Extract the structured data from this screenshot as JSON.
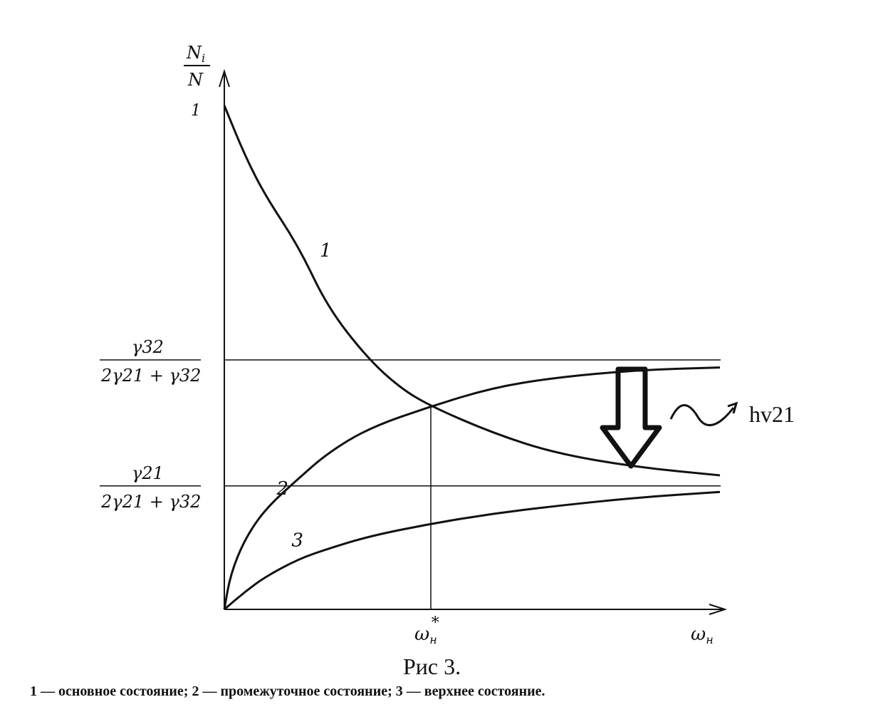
{
  "chart_data": {
    "type": "line",
    "title": "Рис 3.",
    "caption": "1 — основное состояние; 2 — промежуточное состояние; 3 — верхнее состояние.",
    "ylabel_num": "N",
    "ylabel_num_sub": "i",
    "ylabel_den": "N",
    "xlabel": "ω",
    "xlabel_sub": "н",
    "xmark_label": "ω",
    "xmark_sub": "н",
    "xmark_sup": "*",
    "y_tick_top": "1",
    "xlim": [
      0,
      2.45
    ],
    "ylim": [
      0,
      1
    ],
    "xmark": 1,
    "levels": [
      {
        "num": "γ32",
        "den": "2γ21 + γ32",
        "value": 0.495
      },
      {
        "num": "γ21",
        "den": "2γ21 + γ32",
        "value": 0.245
      }
    ],
    "series": [
      {
        "name": "1",
        "color": "#111111",
        "x": [
          0,
          0.1,
          0.2,
          0.36,
          0.5,
          0.69,
          0.85,
          1.0,
          1.3,
          1.6,
          2.0,
          2.4
        ],
        "y": [
          1,
          0.9,
          0.82,
          0.72,
          0.6,
          0.5,
          0.44,
          0.403,
          0.35,
          0.31,
          0.282,
          0.266
        ]
      },
      {
        "name": "2",
        "color": "#111111",
        "x": [
          0,
          0.03,
          0.1,
          0.2,
          0.36,
          0.5,
          0.7,
          1.0,
          1.3,
          1.6,
          2.0,
          2.4
        ],
        "y": [
          0,
          0.07,
          0.14,
          0.2,
          0.26,
          0.31,
          0.36,
          0.403,
          0.44,
          0.46,
          0.475,
          0.48
        ]
      },
      {
        "name": "3",
        "color": "#111111",
        "x": [
          0,
          0.1,
          0.2,
          0.36,
          0.5,
          0.7,
          1.0,
          1.3,
          1.6,
          2.0,
          2.4
        ],
        "y": [
          0,
          0.035,
          0.065,
          0.1,
          0.12,
          0.145,
          0.17,
          0.19,
          0.205,
          0.222,
          0.233
        ]
      }
    ],
    "annotation": {
      "text": "hv21",
      "arrow": "down, from curve 2 to curve 1"
    },
    "grid": false
  }
}
